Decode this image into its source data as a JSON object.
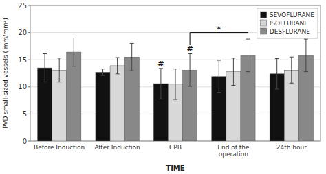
{
  "chart_data": {
    "type": "bar",
    "categories": [
      "Before Induction",
      "After Induction",
      "CPB",
      "End of the\noperation",
      "24th hour"
    ],
    "series": [
      {
        "name": "SEVOFLURANE",
        "color": "#111111",
        "values": [
          13.5,
          12.7,
          10.6,
          11.9,
          12.4
        ],
        "errors": [
          2.6,
          0.6,
          2.8,
          3.0,
          2.8
        ]
      },
      {
        "name": "ISOFLURANE",
        "color": "#d8d8d8",
        "values": [
          13.1,
          13.9,
          10.5,
          12.8,
          13.1
        ],
        "errors": [
          2.2,
          1.5,
          2.8,
          2.5,
          2.4
        ]
      },
      {
        "name": "DESFLURANE",
        "color": "#888888",
        "values": [
          16.4,
          15.5,
          13.1,
          15.8,
          15.8
        ],
        "errors": [
          2.6,
          2.5,
          3.0,
          3.0,
          3.0
        ]
      }
    ],
    "xlabel": "TIME",
    "ylabel": "PVD small-sized vessels ( mm/mm²)",
    "ylim": [
      0.0,
      25.0
    ],
    "yticks": [
      0.0,
      5.0,
      10.0,
      15.0,
      20.0,
      25.0
    ],
    "grid": true,
    "legend": "upper right",
    "annotations": [
      {
        "text": "#",
        "category": "CPB",
        "series": "SEVOFLURANE"
      },
      {
        "text": "#",
        "category": "CPB",
        "series": "DESFLURANE"
      },
      {
        "text": "*",
        "y": 20.0,
        "from": "CPB",
        "to": "End of the\noperation",
        "series": "DESFLURANE"
      }
    ]
  }
}
